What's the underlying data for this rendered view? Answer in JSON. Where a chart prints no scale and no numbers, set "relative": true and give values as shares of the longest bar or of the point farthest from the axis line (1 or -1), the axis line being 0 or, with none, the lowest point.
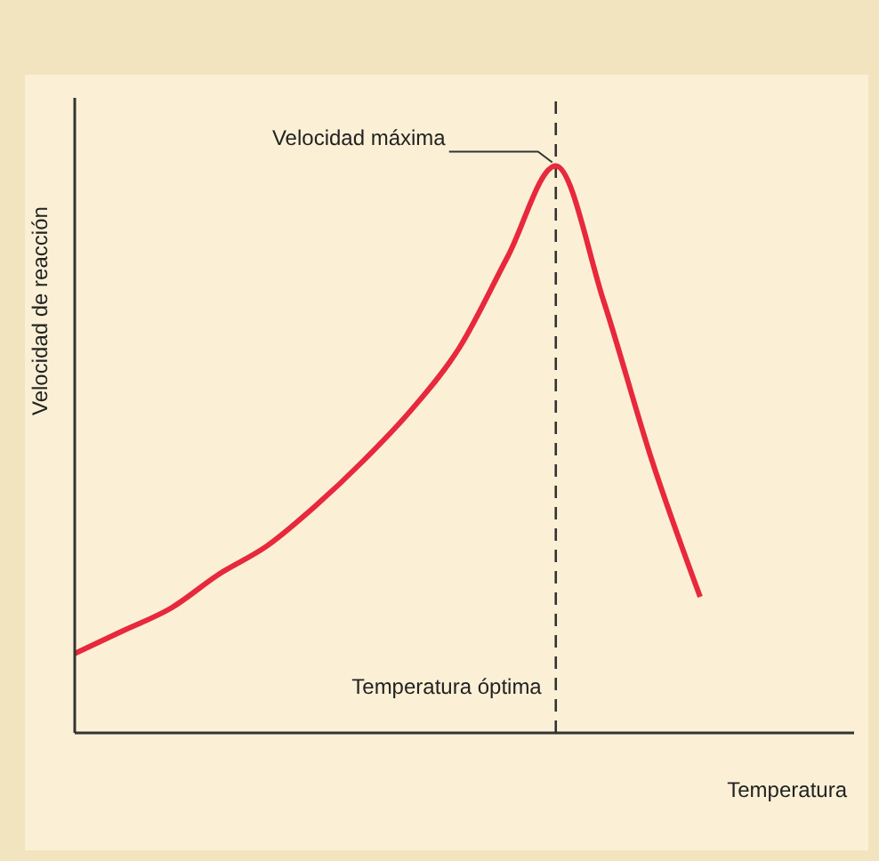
{
  "chart_data": {
    "type": "line",
    "relative": true,
    "xlabel": "Temperatura",
    "ylabel": "Velocidad de reacción",
    "categories": [
      null,
      null,
      null,
      null,
      null,
      null,
      null,
      null,
      null,
      null,
      null,
      null,
      null,
      null,
      null,
      null,
      null
    ],
    "series": [
      {
        "color": "#e8283c",
        "values": [
          0.14,
          0.18,
          0.22,
          0.28,
          0.33,
          0.4,
          0.48,
          0.57,
          0.68,
          0.84,
          1,
          0.76,
          0.48,
          0.24,
          null,
          null,
          null
        ]
      }
    ],
    "annotations": [
      "Velocidad máxima",
      "Temperatura óptima"
    ],
    "marker": "none",
    "line_style": "solid"
  }
}
